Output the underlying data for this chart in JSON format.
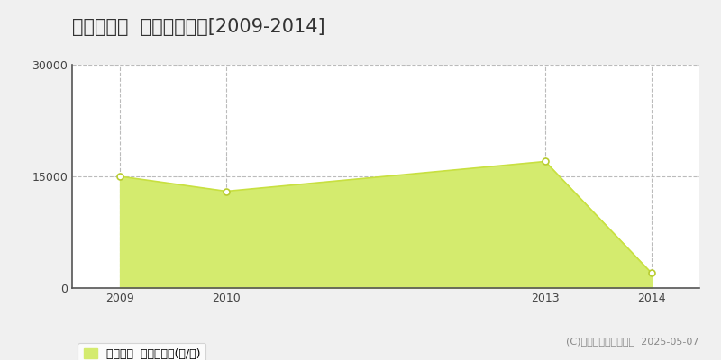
{
  "title": "日南市平野  農地価格推移[2009-2014]",
  "years": [
    2009,
    2010,
    2013,
    2014
  ],
  "values": [
    15000,
    13000,
    17000,
    2000
  ],
  "line_color": "#c8e040",
  "fill_color": "#d4eb6e",
  "fill_alpha": 1.0,
  "marker_facecolor": "#ffffff",
  "marker_edge_color": "#b8cc30",
  "ylim": [
    0,
    30000
  ],
  "yticks": [
    0,
    15000,
    30000
  ],
  "xlim_left": 2008.55,
  "xlim_right": 2014.45,
  "grid_color": "#bbbbbb",
  "bg_color": "#f0f0f0",
  "plot_bg": "#ffffff",
  "title_fontsize": 15,
  "legend_label": "農地価格  平均坪単価(円/坪)",
  "copyright_text": "(C)土地価格ドットコム  2025-05-07",
  "spine_color": "#555555"
}
